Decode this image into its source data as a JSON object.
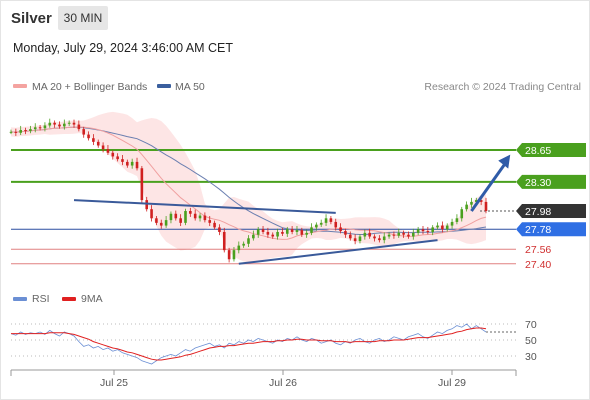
{
  "header": {
    "instrument": "Silver",
    "timeframe": "30 MIN",
    "datetime": "Monday, July 29, 2024 3:46:00 AM CET"
  },
  "legend": {
    "items": [
      {
        "label": "MA 20 + Bollinger Bands",
        "color": "#f4a3a0"
      },
      {
        "label": "MA 50",
        "color": "#3a5f9e"
      }
    ],
    "copyright": "Research © 2024 Trading Central"
  },
  "rsi_legend": {
    "items": [
      {
        "label": "RSI",
        "color": "#6b8fd4"
      },
      {
        "label": "9MA",
        "color": "#e02020"
      }
    ]
  },
  "colors": {
    "resistance": "#4aa01e",
    "support": "#e08080",
    "pivot": "#2c4fa0",
    "current": "#333333",
    "last": "#2f6fe4",
    "trendline": "#3a5a9a",
    "arrow": "#2f5ba8",
    "bb_fill": "#fde4e4",
    "ma20": "#f0a0a0",
    "ma50": "#6b7fb0",
    "candle_up": "#4aa01e",
    "candle_down": "#d02020"
  },
  "chart_data": [
    {
      "type": "candlestick",
      "x_ticks": [
        "Jul 25",
        "Jul 26",
        "Jul 29"
      ],
      "ylim": [
        27.2,
        29.2
      ],
      "levels": [
        {
          "value": 28.65,
          "label": "28.65",
          "kind": "resistance"
        },
        {
          "value": 28.3,
          "label": "28.30",
          "kind": "resistance"
        },
        {
          "value": 27.98,
          "label": "27.98",
          "kind": "current"
        },
        {
          "value": 27.78,
          "label": "27.78",
          "kind": "pivot"
        },
        {
          "value": 27.56,
          "label": "27.56",
          "kind": "support"
        },
        {
          "value": 27.4,
          "label": "27.40",
          "kind": "support"
        }
      ],
      "close_series": [
        28.85,
        28.84,
        28.87,
        28.86,
        28.88,
        28.9,
        28.89,
        28.92,
        28.95,
        28.93,
        28.91,
        28.94,
        28.95,
        28.93,
        28.88,
        28.82,
        28.78,
        28.74,
        28.7,
        28.66,
        28.62,
        28.58,
        28.55,
        28.52,
        28.48,
        28.52,
        28.45,
        28.1,
        28.0,
        27.9,
        27.85,
        27.82,
        27.88,
        27.95,
        27.9,
        27.85,
        27.98,
        27.95,
        27.9,
        27.93,
        27.88,
        27.85,
        27.8,
        27.75,
        27.55,
        27.45,
        27.55,
        27.6,
        27.62,
        27.68,
        27.72,
        27.78,
        27.75,
        27.72,
        27.7,
        27.75,
        27.73,
        27.78,
        27.75,
        27.77,
        27.72,
        27.74,
        27.8,
        27.83,
        27.85,
        27.9,
        27.86,
        27.8,
        27.76,
        27.72,
        27.68,
        27.65,
        27.7,
        27.74,
        27.7,
        27.68,
        27.66,
        27.7,
        27.72,
        27.71,
        27.74,
        27.72,
        27.7,
        27.74,
        27.78,
        27.76,
        27.75,
        27.8,
        27.82,
        27.78,
        27.82,
        27.86,
        27.9,
        28.0,
        28.05,
        28.08,
        28.1,
        28.08,
        27.98
      ],
      "trendlines": [
        {
          "from": [
            13,
            28.1
          ],
          "to": [
            67,
            27.96
          ]
        },
        {
          "from": [
            47,
            27.4
          ],
          "to": [
            88,
            27.66
          ]
        }
      ],
      "arrow": {
        "from": [
          95,
          27.98
        ],
        "to": [
          103,
          28.6
        ]
      }
    },
    {
      "type": "line",
      "name_labels": [
        "RSI",
        "9MA"
      ],
      "y_ticks": [
        70,
        50,
        30
      ],
      "ylim": [
        15,
        85
      ],
      "rsi": [
        58,
        56,
        60,
        57,
        59,
        58,
        60,
        57,
        62,
        58,
        55,
        60,
        58,
        55,
        48,
        42,
        44,
        40,
        42,
        38,
        40,
        36,
        38,
        34,
        32,
        30,
        28,
        24,
        22,
        20,
        24,
        28,
        30,
        32,
        30,
        34,
        38,
        36,
        40,
        42,
        44,
        46,
        42,
        44,
        40,
        46,
        44,
        48,
        46,
        50,
        48,
        52,
        50,
        48,
        46,
        50,
        48,
        52,
        50,
        54,
        50,
        48,
        52,
        50,
        46,
        48,
        50,
        46,
        44,
        48,
        46,
        50,
        52,
        48,
        46,
        50,
        52,
        48,
        50,
        54,
        52,
        50,
        54,
        56,
        58,
        54,
        52,
        56,
        60,
        58,
        62,
        64,
        68,
        66,
        70,
        64,
        68,
        64,
        60
      ],
      "rsi_ma": [
        58,
        58,
        58,
        58,
        58,
        58,
        58,
        58,
        59,
        59,
        59,
        59,
        58,
        57,
        55,
        53,
        51,
        48,
        46,
        44,
        42,
        40,
        39,
        37,
        35,
        34,
        32,
        30,
        28,
        26,
        25,
        25,
        26,
        27,
        28,
        29,
        31,
        32,
        34,
        36,
        38,
        40,
        41,
        42,
        42,
        43,
        43,
        44,
        45,
        46,
        46,
        47,
        48,
        48,
        48,
        49,
        49,
        50,
        50,
        51,
        51,
        50,
        50,
        50,
        49,
        49,
        49,
        48,
        48,
        48,
        47,
        48,
        48,
        48,
        48,
        48,
        49,
        49,
        49,
        50,
        50,
        50,
        51,
        52,
        53,
        53,
        53,
        54,
        55,
        56,
        57,
        58,
        60,
        61,
        63,
        64,
        65,
        65,
        64
      ]
    }
  ]
}
